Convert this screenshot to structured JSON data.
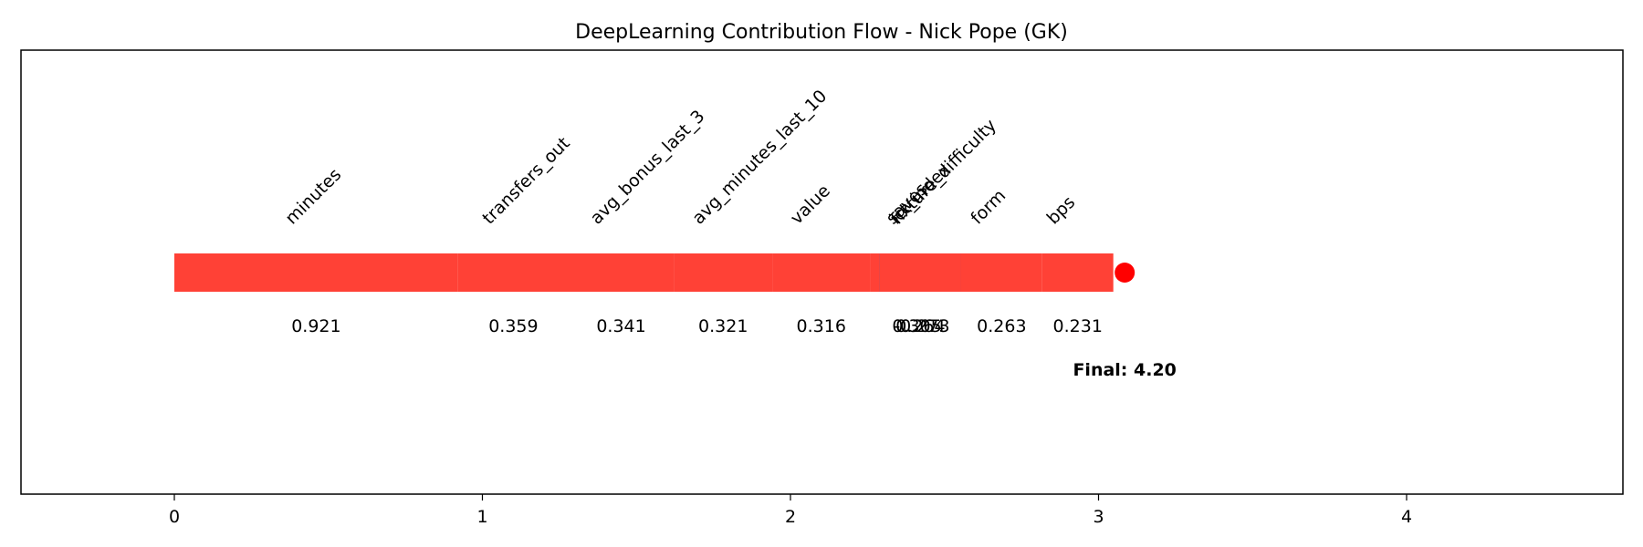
{
  "chart_data": {
    "type": "bar",
    "title": "DeepLearning Contribution Flow - Nick Pope (GK)",
    "xlabel": "",
    "ylabel": "",
    "xlim": [
      -0.5,
      4.7
    ],
    "xticks": [
      0,
      1,
      2,
      3,
      4
    ],
    "grid": false,
    "segments": [
      {
        "feature": "minutes",
        "value": 0.921,
        "color": "#ff4136"
      },
      {
        "feature": "transfers_out",
        "value": 0.359,
        "color": "#ff4136"
      },
      {
        "feature": "avg_bonus_last_3",
        "value": 0.341,
        "color": "#ff4136"
      },
      {
        "feature": "avg_minutes_last_10",
        "value": 0.321,
        "color": "#ff4136"
      },
      {
        "feature": "value",
        "value": 0.316,
        "color": "#ff4136"
      },
      {
        "feature": "saves",
        "value": 0.305,
        "color": "#ff4136"
      },
      {
        "feature": "fixture_difficulty",
        "value": -0.273,
        "color": "#0074d9",
        "value_label": "-0.273"
      },
      {
        "feature": "ict_index",
        "value": 0.264,
        "color": "#ff4136"
      },
      {
        "feature": "form",
        "value": 0.263,
        "color": "#ff4136"
      },
      {
        "feature": "bps",
        "value": 0.231,
        "color": "#ff4136"
      }
    ],
    "end_point": {
      "x": 3.085,
      "color": "#ff0000"
    },
    "final_text": "Final: 4.20"
  }
}
